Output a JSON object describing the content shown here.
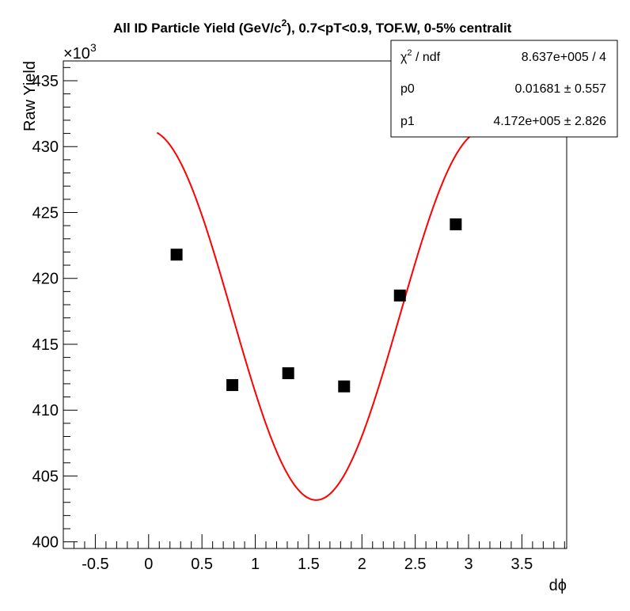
{
  "chart_data": {
    "type": "scatter",
    "title": "All ID Particle Yield (GeV/c",
    "title_sup": "2",
    "title_rest": "), 0.7<pT<0.9, TOF.W, 0-5% centralit",
    "xlabel": "dϕ",
    "ylabel": "Raw Yield",
    "y_multiplier_label": "×10",
    "y_multiplier_exp": "3",
    "xlim": [
      -0.8,
      3.92
    ],
    "ylim": [
      399500,
      436500
    ],
    "x_tick_values": [
      -0.5,
      0,
      0.5,
      1,
      1.5,
      2,
      2.5,
      3,
      3.5
    ],
    "x_tick_labels": [
      "-0.5",
      "0",
      "0.5",
      "1",
      "1.5",
      "2",
      "2.5",
      "3",
      "3.5"
    ],
    "y_tick_values": [
      400000,
      405000,
      410000,
      415000,
      420000,
      425000,
      430000,
      435000
    ],
    "y_tick_labels": [
      "400",
      "405",
      "410",
      "415",
      "420",
      "425",
      "430",
      "435"
    ],
    "grid": false,
    "series": [
      {
        "marker": "square",
        "color": "#000000",
        "x": [
          0.262,
          0.785,
          1.309,
          1.833,
          2.356,
          2.88
        ],
        "y": [
          421800,
          411900,
          412800,
          411800,
          418700,
          424100
        ]
      }
    ],
    "fit": {
      "color": "#ff0000",
      "function": "p1*(1 + 2*p0*cos(2*x))",
      "p0": 0.01681,
      "p1": 417200,
      "x_range": [
        0.0785,
        3.063
      ]
    },
    "stats_box": {
      "placement": "top-right",
      "rows": [
        {
          "label": "χ",
          "label_sup": "2",
          "label_rest": " / ndf",
          "value": "8.637e+005 / 4"
        },
        {
          "label": "p0",
          "label_sup": "",
          "label_rest": "",
          "value": "0.01681 ± 0.557"
        },
        {
          "label": "p1",
          "label_sup": "",
          "label_rest": "",
          "value": "4.172e+005 ± 2.826"
        }
      ]
    }
  }
}
